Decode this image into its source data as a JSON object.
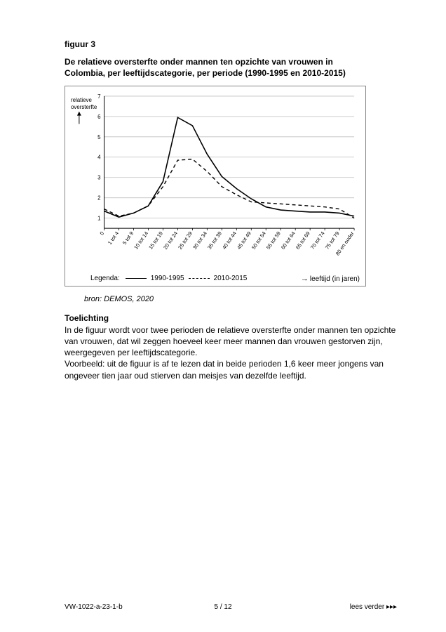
{
  "figure": {
    "label": "figuur 3",
    "title_line1": "De relatieve oversterfte onder mannen ten opzichte van vrouwen in",
    "title_line2": "Colombia, per leeftijdscategorie, per periode (1990-1995 en 2010-2015)",
    "source": "bron: DEMOS, 2020",
    "toelichting_head": "Toelichting",
    "toelichting_body": "In de figuur wordt voor twee perioden de relatieve oversterfte onder mannen ten opzichte van vrouwen, dat wil zeggen hoeveel keer meer mannen dan vrouwen gestorven zijn, weergegeven per leeftijdscategorie.\nVoorbeeld: uit de figuur is af te lezen dat in beide perioden 1,6 keer meer jongens van ongeveer tien jaar oud stierven dan meisjes van dezelfde leeftijd."
  },
  "chart": {
    "ylabel_line1": "relatieve",
    "ylabel_line2": "oversterfte",
    "xlabel": "leeftijd (in jaren)",
    "legend_label": "Legenda:",
    "ylim": [
      0.5,
      7
    ],
    "yticks": [
      1,
      2,
      3,
      4,
      5,
      6,
      7
    ],
    "categories": [
      "0",
      "1 tot 4",
      "5 tot 9",
      "10 tot 14",
      "15 tot 19",
      "20 tot 24",
      "25 tot 29",
      "30 tot 34",
      "35 tot 39",
      "40 tot 44",
      "45 tot 49",
      "50 tot 54",
      "55 tot 59",
      "60 tot 64",
      "65 tot 69",
      "70 tot 74",
      "75 tot 79",
      "80 en ouder"
    ],
    "series": [
      {
        "name": "1990-1995",
        "style": "solid",
        "color": "#000000",
        "width": 1.6,
        "values": [
          1.35,
          1.05,
          1.25,
          1.6,
          2.8,
          5.95,
          5.55,
          4.15,
          3.05,
          2.45,
          1.95,
          1.55,
          1.4,
          1.35,
          1.3,
          1.3,
          1.25,
          1.1
        ]
      },
      {
        "name": "2010-2015",
        "style": "dashed",
        "color": "#000000",
        "width": 1.4,
        "values": [
          1.45,
          1.1,
          1.25,
          1.6,
          2.55,
          3.85,
          3.9,
          3.3,
          2.55,
          2.15,
          1.8,
          1.75,
          1.7,
          1.65,
          1.6,
          1.55,
          1.45,
          1.0
        ]
      }
    ],
    "grid_color": "#bfbfbf",
    "axis_color": "#000000",
    "background": "#ffffff",
    "label_fontsize": 8
  },
  "footer": {
    "left": "VW-1022-a-23-1-b",
    "center": "5 / 12",
    "right_prefix": "lees verder",
    "right_arrows": "▸▸▸"
  }
}
